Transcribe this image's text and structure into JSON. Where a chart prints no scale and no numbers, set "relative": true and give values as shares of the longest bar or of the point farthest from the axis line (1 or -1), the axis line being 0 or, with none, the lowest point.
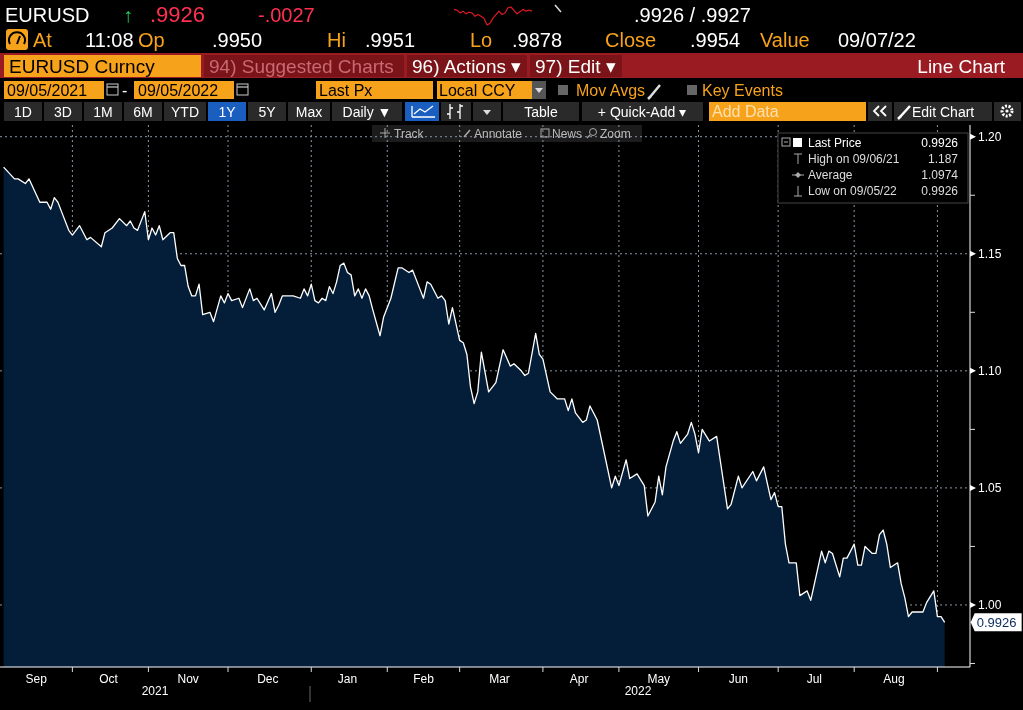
{
  "chart_data": [
    {
      "type": "area",
      "legend": "top right",
      "grid": true,
      "xlim": [
        "2021-09-03",
        "2022-09-14"
      ],
      "ylim": [
        0.9735,
        1.205
      ],
      "xticks": [
        {
          "value": "2021-10-01",
          "label": null
        },
        {
          "value": "2021-11-01",
          "label": null
        },
        {
          "value": "2021-12-01",
          "label": null
        },
        {
          "value": "2022-01-03",
          "label": null
        },
        {
          "value": "2022-02-01",
          "label": null
        },
        {
          "value": "2022-03-01",
          "label": null
        },
        {
          "value": "2022-04-01",
          "label": null
        },
        {
          "value": "2022-05-02",
          "label": null
        },
        {
          "value": "2022-06-01",
          "label": null
        },
        {
          "value": "2022-07-01",
          "label": null
        },
        {
          "value": "2022-08-01",
          "label": null
        },
        {
          "value": "2022-09-01",
          "label": null
        },
        {
          "value": "2021-09-17",
          "label": "Sep"
        },
        {
          "value": "2021-10-15",
          "label": "Oct"
        },
        {
          "value": "2021-11-16",
          "label": "Nov"
        },
        {
          "value": "2021-12-16",
          "label": "Dec"
        },
        {
          "value": "2022-01-17",
          "label": "Jan"
        },
        {
          "value": "2022-02-15",
          "label": "Feb"
        },
        {
          "value": "2022-03-16",
          "label": "Mar"
        },
        {
          "value": "2022-04-15",
          "label": "Apr"
        },
        {
          "value": "2022-05-17",
          "label": "May"
        },
        {
          "value": "2022-06-16",
          "label": "Jun"
        },
        {
          "value": "2022-07-15",
          "label": "Jul"
        },
        {
          "value": "2022-08-16",
          "label": "Aug"
        }
      ],
      "yticks": [
        {
          "value": 0.975,
          "label": null
        },
        {
          "value": 1,
          "label": "1.00"
        },
        {
          "value": 1.025,
          "label": null
        },
        {
          "value": 1.05,
          "label": "1.05"
        },
        {
          "value": 1.075,
          "label": null
        },
        {
          "value": 1.1,
          "label": "1.10"
        },
        {
          "value": 1.125,
          "label": null
        },
        {
          "value": 1.15,
          "label": "1.15"
        },
        {
          "value": 1.175,
          "label": null
        },
        {
          "value": 1.2,
          "label": "1.20"
        }
      ],
      "x": [
        "2021-09-06",
        "2021-09-09",
        "2021-09-10",
        "2021-09-14",
        "2021-09-15",
        "2021-09-20",
        "2021-09-22",
        "2021-09-23",
        "2021-09-24",
        "2021-09-27",
        "2021-09-28",
        "2021-09-30",
        "2021-10-01",
        "2021-10-05",
        "2021-10-07",
        "2021-10-08",
        "2021-10-13",
        "2021-10-14",
        "2021-10-18",
        "2021-10-20",
        "2021-10-22",
        "2021-10-25",
        "2021-10-26",
        "2021-10-27",
        "2021-10-29",
        "2021-11-01",
        "2021-11-02",
        "2021-11-03",
        "2021-11-04",
        "2021-11-05",
        "2021-11-09",
        "2021-11-10",
        "2021-11-11",
        "2021-11-12",
        "2021-11-15",
        "2021-11-16",
        "2021-11-17",
        "2021-11-18",
        "2021-11-19",
        "2021-11-22",
        "2021-11-24",
        "2021-11-25",
        "2021-11-29",
        "2021-11-30",
        "2021-12-01",
        "2021-12-02",
        "2021-12-06",
        "2021-12-07",
        "2021-12-09",
        "2021-12-10",
        "2021-12-13",
        "2021-12-15",
        "2021-12-17",
        "2021-12-20",
        "2021-12-21",
        "2021-12-22",
        "2021-12-27",
        "2021-12-29",
        "2021-12-30",
        "2021-12-31",
        "2022-01-03",
        "2022-01-04",
        "2022-01-05",
        "2022-01-06",
        "2022-01-07",
        "2022-01-10",
        "2022-01-11",
        "2022-01-12",
        "2022-01-13",
        "2022-01-14",
        "2022-01-17",
        "2022-01-18",
        "2022-01-19",
        "2022-01-20",
        "2022-01-21",
        "2022-01-24",
        "2022-01-25",
        "2022-01-26",
        "2022-01-28",
        "2022-01-31",
        "2022-02-02",
        "2022-02-04",
        "2022-02-07",
        "2022-02-09",
        "2022-02-10",
        "2022-02-14",
        "2022-02-15",
        "2022-02-16",
        "2022-02-17",
        "2022-02-21",
        "2022-02-22",
        "2022-02-23",
        "2022-02-24",
        "2022-02-25",
        "2022-03-01",
        "2022-03-02",
        "2022-03-03",
        "2022-03-04",
        "2022-03-07",
        "2022-03-08",
        "2022-03-09",
        "2022-03-11",
        "2022-03-15",
        "2022-03-17",
        "2022-03-21",
        "2022-03-22",
        "2022-03-24",
        "2022-03-25",
        "2022-03-28",
        "2022-03-30",
        "2022-03-31",
        "2022-04-01",
        "2022-04-05",
        "2022-04-07",
        "2022-04-11",
        "2022-04-12",
        "2022-04-13",
        "2022-04-14",
        "2022-04-18",
        "2022-04-19",
        "2022-04-20",
        "2022-04-22",
        "2022-04-28",
        "2022-04-29",
        "2022-05-02",
        "2022-05-04",
        "2022-05-05",
        "2022-05-09",
        "2022-05-11",
        "2022-05-12",
        "2022-05-16",
        "2022-05-17",
        "2022-05-18",
        "2022-05-19",
        "2022-05-23",
        "2022-05-24",
        "2022-05-25",
        "2022-05-27",
        "2022-05-30",
        "2022-05-31",
        "2022-06-01",
        "2022-06-02",
        "2022-06-06",
        "2022-06-08",
        "2022-06-13",
        "2022-06-14",
        "2022-06-16",
        "2022-06-17",
        "2022-06-22",
        "2022-06-23",
        "2022-06-27",
        "2022-06-29",
        "2022-06-30",
        "2022-07-01",
        "2022-07-04",
        "2022-07-05",
        "2022-07-06",
        "2022-07-08",
        "2022-07-11",
        "2022-07-13",
        "2022-07-14",
        "2022-07-19",
        "2022-07-20",
        "2022-07-21",
        "2022-07-22",
        "2022-07-26",
        "2022-07-27",
        "2022-07-28",
        "2022-08-01",
        "2022-08-02",
        "2022-08-03",
        "2022-08-04",
        "2022-08-08",
        "2022-08-09",
        "2022-08-10",
        "2022-08-11",
        "2022-08-12",
        "2022-08-15",
        "2022-08-17",
        "2022-08-18",
        "2022-08-19",
        "2022-08-22",
        "2022-08-23",
        "2022-08-26",
        "2022-08-29",
        "2022-08-31",
        "2022-09-01",
        "2022-09-02",
        "2022-09-05"
      ],
      "series": [
        {
          "name": "Last Price",
          "color": "#ffffff",
          "values": [
            1.187,
            1.182,
            1.182,
            1.18,
            1.182,
            1.172,
            1.172,
            1.169,
            1.174,
            1.172,
            1.168,
            1.16,
            1.158,
            1.162,
            1.156,
            1.157,
            1.153,
            1.159,
            1.161,
            1.165,
            1.162,
            1.164,
            1.161,
            1.16,
            1.168,
            1.156,
            1.161,
            1.158,
            1.162,
            1.156,
            1.159,
            1.159,
            1.148,
            1.145,
            1.145,
            1.136,
            1.132,
            1.132,
            1.137,
            1.124,
            1.125,
            1.121,
            1.132,
            1.129,
            1.133,
            1.13,
            1.131,
            1.127,
            1.135,
            1.13,
            1.131,
            1.126,
            1.133,
            1.125,
            1.128,
            1.132,
            1.132,
            1.131,
            1.135,
            1.132,
            1.137,
            1.13,
            1.129,
            1.131,
            1.13,
            1.136,
            1.133,
            1.138,
            1.145,
            1.146,
            1.142,
            1.141,
            1.132,
            1.135,
            1.131,
            1.135,
            1.132,
            1.126,
            1.115,
            1.123,
            1.131,
            1.144,
            1.144,
            1.142,
            1.143,
            1.135,
            1.131,
            1.138,
            1.137,
            1.131,
            1.132,
            1.13,
            1.12,
            1.127,
            1.113,
            1.112,
            1.107,
            1.093,
            1.086,
            1.091,
            1.108,
            1.091,
            1.095,
            1.109,
            1.102,
            1.103,
            1.1,
            1.098,
            1.099,
            1.116,
            1.107,
            1.105,
            1.091,
            1.088,
            1.088,
            1.083,
            1.088,
            1.082,
            1.078,
            1.079,
            1.085,
            1.079,
            1.05,
            1.055,
            1.051,
            1.062,
            1.054,
            1.056,
            1.051,
            1.038,
            1.044,
            1.055,
            1.047,
            1.059,
            1.07,
            1.074,
            1.069,
            1.073,
            1.078,
            1.073,
            1.065,
            1.075,
            1.07,
            1.072,
            1.041,
            1.043,
            1.055,
            1.05,
            1.057,
            1.053,
            1.059,
            1.045,
            1.048,
            1.042,
            1.042,
            1.026,
            1.018,
            1.018,
            1.004,
            1.006,
            1.002,
            1.023,
            1.018,
            1.023,
            1.022,
            1.012,
            1.02,
            1.02,
            1.026,
            1.017,
            1.017,
            1.025,
            1.022,
            1.022,
            1.03,
            1.032,
            1.026,
            1.016,
            1.018,
            1.009,
            1.003,
            0.995,
            0.997,
            0.997,
            1.001,
            1.006,
            0.995,
            0.995,
            0.9926
          ]
        }
      ],
      "annotations": [
        "EURUSD",
        "↑",
        ".9926",
        "-.0027",
        ".9926 / .9927",
        "At",
        "11:08",
        "Op",
        ".9950",
        "Hi",
        ".9951",
        "Lo",
        ".9878",
        "Close",
        ".9954",
        "Value",
        "09/07/22",
        "EURUSD Curncy",
        "94) Suggested Charts",
        "96) Actions ▾",
        "97) Edit ▾",
        "Line Chart",
        "09/05/2021",
        "-",
        "09/05/2022",
        "Last Px",
        "Local CCY",
        "Mov Avgs",
        "Key Events",
        "1D",
        "3D",
        "1M",
        "6M",
        "YTD",
        "1Y",
        "5Y",
        "Max",
        "Daily ▼",
        "Table",
        "+ Quick-Add ▾",
        "Add Data",
        "Edit Chart",
        "Track",
        "Annotate",
        "News",
        "Zoom",
        "0.9926",
        "High on 09/06/21",
        "1.187",
        "Average",
        "1.0974",
        "Low on 09/05/22",
        "0.9926",
        {
          "text": "0.9926",
          "x": "2022-09-05",
          "y": 0.9926
        },
        "2021",
        "2022"
      ]
    },
    {
      "type": "line",
      "relative": true,
      "categories": [
        null,
        null,
        null,
        null,
        null,
        null,
        null,
        null,
        null,
        null,
        null,
        null,
        null,
        null,
        null,
        null,
        null,
        null,
        null,
        null,
        null,
        null,
        null,
        null,
        null,
        null,
        null
      ],
      "series": [
        {
          "color": "#e01a24",
          "values": [
            0.87,
            0.83,
            0.67,
            0.77,
            0.62,
            0.71,
            0.67,
            0.48,
            0.58,
            0.48,
            0.38,
            0,
            0.1,
            0.38,
            0.58,
            0.77,
            0.58,
            0.67,
            0.96,
            1,
            0.81,
            0.62,
            0.73,
            0.87,
            0.77,
            0.83,
            0.77
          ]
        }
      ]
    }
  ]
}
